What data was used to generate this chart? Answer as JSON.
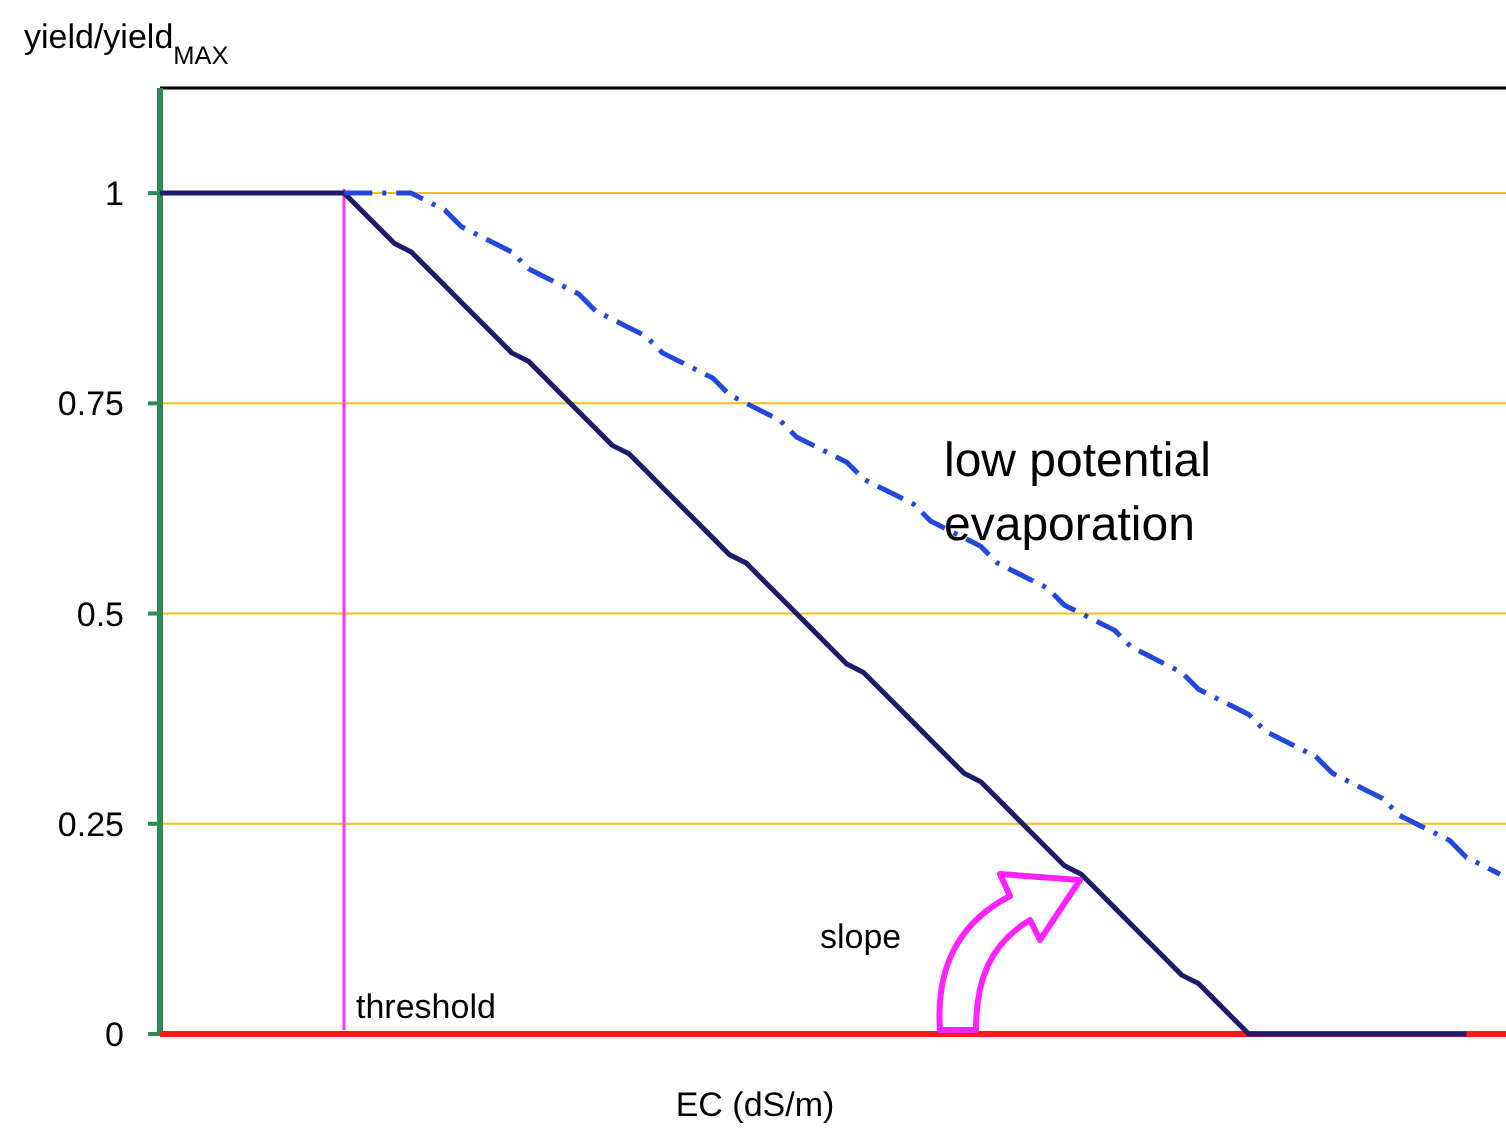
{
  "chart_data": {
    "type": "line",
    "ylabel": "yield/yield$_{MAX}$",
    "xlabel": "EC (dS/m)",
    "categories": [
      null,
      null,
      null,
      null,
      null,
      null,
      null,
      null,
      null,
      null,
      null,
      null,
      null,
      null,
      null,
      null,
      null,
      null,
      null,
      null,
      null,
      null,
      null,
      null,
      null,
      null,
      null,
      null,
      null,
      null,
      null,
      null,
      null,
      null,
      null,
      null,
      null,
      null,
      null,
      null,
      null,
      null,
      null,
      null,
      null,
      null,
      null,
      null,
      null,
      null,
      null,
      null,
      null,
      null,
      null,
      null,
      null,
      null,
      null,
      null,
      null,
      null,
      null,
      null,
      null,
      null,
      null,
      null,
      null,
      null,
      null,
      null,
      null,
      null,
      null,
      null,
      null,
      null,
      null,
      null,
      null
    ],
    "ylim": [
      0,
      1.125
    ],
    "yticks": [
      0,
      0.25,
      0.5,
      0.75,
      1
    ],
    "grid": "y",
    "marker": "none",
    "series": [
      {
        "values": [
          1,
          1,
          1,
          1,
          1,
          1,
          1,
          1,
          1,
          1,
          1,
          1,
          0.98,
          0.96,
          0.94,
          0.93,
          0.91,
          0.89,
          0.87,
          0.85,
          0.83,
          0.81,
          0.8,
          0.78,
          0.76,
          0.74,
          0.72,
          0.7,
          0.69,
          0.67,
          0.65,
          0.63,
          0.61,
          0.59,
          0.57,
          0.56,
          0.54,
          0.52,
          0.5,
          0.48,
          0.46,
          0.44,
          0.43,
          0.41,
          0.39,
          0.37,
          0.35,
          0.33,
          0.31,
          0.3,
          0.28,
          0.26,
          0.24,
          0.22,
          0.2,
          0.19,
          0.17,
          0.15,
          0.13,
          0.11,
          0.09,
          0.07,
          0.06,
          0.04,
          0.02,
          0,
          0,
          0,
          0,
          0,
          0,
          0,
          0,
          0,
          0,
          0,
          0,
          0,
          0,
          null,
          null
        ],
        "color": "#1c1c6b",
        "line_style": "solid"
      },
      {
        "values": [
          null,
          null,
          null,
          null,
          null,
          null,
          null,
          null,
          null,
          null,
          null,
          1,
          1,
          1,
          1,
          1,
          0.99,
          0.98,
          0.96,
          0.95,
          0.94,
          0.93,
          0.91,
          0.9,
          0.89,
          0.88,
          0.86,
          0.85,
          0.84,
          0.83,
          0.81,
          0.8,
          0.79,
          0.78,
          0.76,
          0.75,
          0.74,
          0.73,
          0.71,
          0.7,
          0.69,
          0.68,
          0.66,
          0.65,
          0.64,
          0.63,
          0.61,
          0.6,
          0.59,
          0.58,
          0.56,
          0.55,
          0.54,
          0.53,
          0.51,
          0.5,
          0.49,
          0.48,
          0.46,
          0.45,
          0.44,
          0.43,
          0.41,
          0.4,
          0.39,
          0.38,
          0.36,
          0.35,
          0.34,
          0.33,
          0.31,
          0.3,
          0.29,
          0.28,
          0.26,
          0.25,
          0.24,
          0.23,
          0.21,
          0.2,
          0.19
        ],
        "color": "#2348e0",
        "line_style": "dashed"
      }
    ],
    "annotations": [
      "low potential evaporation",
      "slope",
      "threshold"
    ]
  }
}
